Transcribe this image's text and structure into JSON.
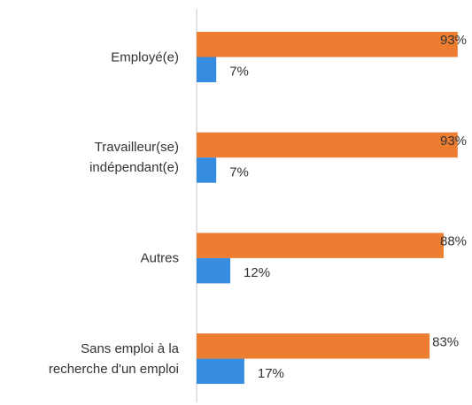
{
  "chart_data": {
    "type": "bar",
    "orientation": "horizontal",
    "categories": [
      "Employé(e)",
      "Travailleur(se)\nindépendant(e)",
      "Autres",
      "Sans emploi à la\nrecherche d'un emploi"
    ],
    "series": [
      {
        "color": "#ED7D31",
        "values": [
          93,
          93,
          88,
          83
        ],
        "value_labels": [
          "93%",
          "93%",
          "88%",
          "83%"
        ]
      },
      {
        "color": "#368CDF",
        "values": [
          7,
          7,
          12,
          17
        ],
        "value_labels": [
          "7%",
          "7%",
          "12%",
          "17%"
        ]
      }
    ],
    "xlim": [
      0,
      100
    ]
  }
}
